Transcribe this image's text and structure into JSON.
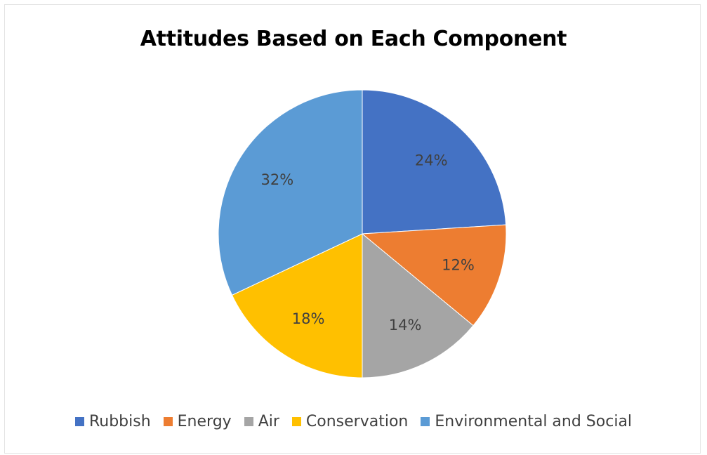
{
  "chart_data": {
    "type": "pie",
    "title": "Attitudes Based on Each Component",
    "categories": [
      "Rubbish",
      "Energy",
      "Air",
      "Conservation",
      "Environmental and Social"
    ],
    "values": [
      24,
      12,
      14,
      18,
      32
    ],
    "value_labels": [
      "24%",
      "12%",
      "14%",
      "18%",
      "32%"
    ],
    "colors": [
      "#4472C4",
      "#ED7D31",
      "#A5A5A5",
      "#FFC000",
      "#5B9BD5"
    ],
    "legend_position": "bottom",
    "start_angle": "top, clockwise"
  }
}
